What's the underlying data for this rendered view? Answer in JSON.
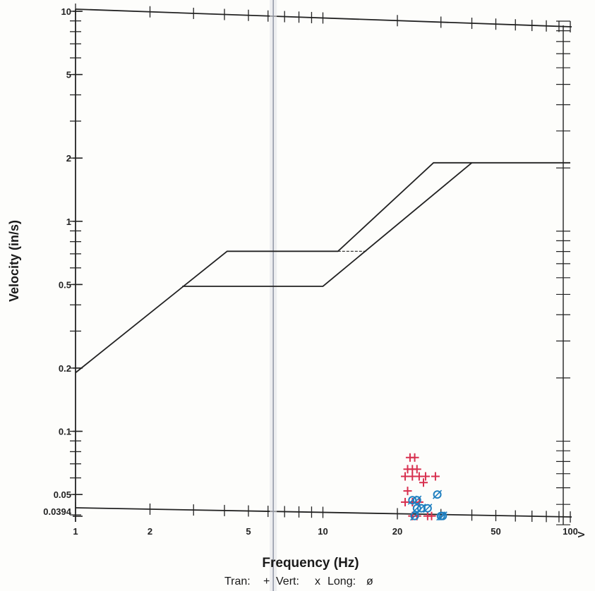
{
  "chart_data": {
    "type": "scatter",
    "title": "",
    "xlabel": "Frequency (Hz)",
    "ylabel": "Velocity (in/s)",
    "x_scale": "log",
    "y_scale": "log",
    "xlim": [
      1,
      100
    ],
    "ylim": [
      0.0394,
      10
    ],
    "x_ticks": [
      1,
      2,
      5,
      10,
      20,
      50,
      100
    ],
    "x_tick_labels": [
      "1",
      "2",
      "5",
      "10",
      "20",
      "50",
      "100"
    ],
    "y_ticks": [
      0.0394,
      0.05,
      0.1,
      0.2,
      0.5,
      1,
      2,
      5,
      10
    ],
    "y_tick_labels": [
      "0.0394",
      "0.05",
      "0.1",
      "0.2",
      "0.5",
      "1",
      "2",
      "5",
      "10"
    ],
    "right_axis_marker": "V",
    "criteria_lines": [
      {
        "style": "solid",
        "points": [
          [
            1,
            0.19
          ],
          [
            4.1,
            0.72
          ],
          [
            11.5,
            0.72
          ],
          [
            28,
            1.9
          ],
          [
            100,
            1.9
          ]
        ]
      },
      {
        "style": "solid",
        "points": [
          [
            2.7,
            0.49
          ],
          [
            10,
            0.49
          ],
          [
            40,
            1.9
          ]
        ]
      },
      {
        "style": "dashed",
        "points": [
          [
            11.5,
            0.72
          ],
          [
            15,
            0.72
          ]
        ]
      },
      {
        "style": "dashed",
        "points": [
          [
            10,
            0.49
          ],
          [
            40,
            1.9
          ]
        ]
      }
    ],
    "reference_line_x": 6.3,
    "series": [
      {
        "name": "Tran",
        "symbol": "+",
        "color": "#d8304f",
        "points": [
          [
            22.5,
            0.075
          ],
          [
            23.5,
            0.075
          ],
          [
            22,
            0.066
          ],
          [
            23,
            0.066
          ],
          [
            24,
            0.066
          ],
          [
            21.5,
            0.061
          ],
          [
            23,
            0.061
          ],
          [
            24.5,
            0.061
          ],
          [
            26,
            0.061
          ],
          [
            28.5,
            0.061
          ],
          [
            25.5,
            0.057
          ],
          [
            22,
            0.052
          ],
          [
            21.5,
            0.046
          ],
          [
            23,
            0.046
          ],
          [
            24.5,
            0.046
          ],
          [
            23,
            0.0395
          ],
          [
            24,
            0.0395
          ],
          [
            26.5,
            0.0395
          ],
          [
            27.5,
            0.0395
          ]
        ]
      },
      {
        "name": "Vert",
        "symbol": "x",
        "color": "#2bb35c",
        "points": []
      },
      {
        "name": "Long",
        "symbol": "ø",
        "color": "#1f7fc0",
        "points": [
          [
            23,
            0.047
          ],
          [
            24,
            0.047
          ],
          [
            29,
            0.05
          ],
          [
            24,
            0.043
          ],
          [
            25,
            0.043
          ],
          [
            26.5,
            0.043
          ],
          [
            23.5,
            0.0395
          ],
          [
            30,
            0.0395
          ],
          [
            30.5,
            0.0395
          ]
        ]
      }
    ],
    "legend": {
      "position": "bottom-center",
      "entries": [
        "Tran:",
        "Vert:",
        "Long:"
      ],
      "symbols": [
        "+",
        "x",
        "ø"
      ]
    }
  }
}
